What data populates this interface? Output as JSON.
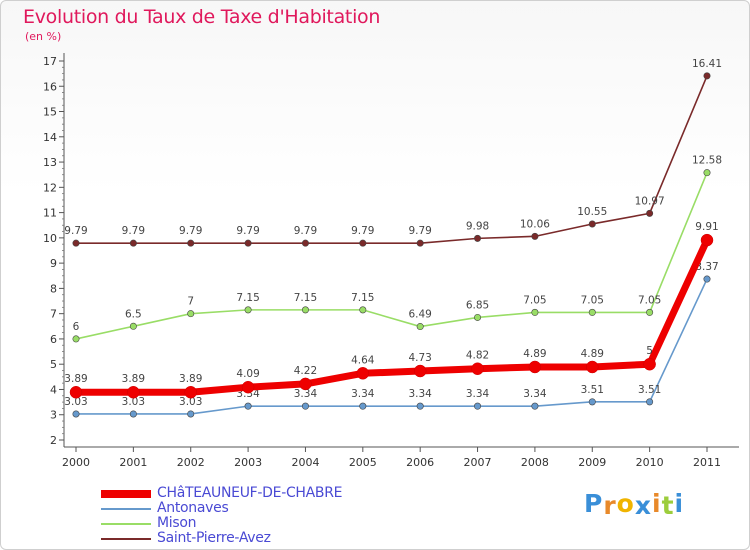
{
  "header": {
    "title": "Evolution du Taux de Taxe d'Habitation",
    "subtitle": "(en %)"
  },
  "chart_data": {
    "type": "line",
    "title": "Evolution du Taux de Taxe d'Habitation",
    "subtitle": "(en %)",
    "categories": [
      "2000",
      "2001",
      "2002",
      "2003",
      "2004",
      "2005",
      "2006",
      "2007",
      "2008",
      "2009",
      "2010",
      "2011"
    ],
    "ylim": [
      2,
      17
    ],
    "yticks": [
      "2",
      "3",
      "4",
      "5",
      "6",
      "7",
      "8",
      "9",
      "10",
      "11",
      "12",
      "13",
      "14",
      "15",
      "16",
      "17"
    ],
    "grid": false,
    "series": [
      {
        "name": "Saint-Pierre-Avez",
        "color": "#7a2a2a",
        "values": [
          9.79,
          9.79,
          9.79,
          9.79,
          9.79,
          9.79,
          9.79,
          9.98,
          10.06,
          10.55,
          10.97,
          16.41
        ],
        "labels": [
          "9.79",
          "9.79",
          "9.79",
          "9.79",
          "9.79",
          "9.79",
          "9.79",
          "9.98",
          "10.06",
          "10.55",
          "10.97",
          "16.41"
        ]
      },
      {
        "name": "Mison",
        "color": "#99dd66",
        "values": [
          6,
          6.5,
          7,
          7.15,
          7.15,
          7.15,
          6.49,
          6.85,
          7.05,
          7.05,
          7.05,
          12.58
        ],
        "labels": [
          "6",
          "6.5",
          "7",
          "7.15",
          "7.15",
          "7.15",
          "6.49",
          "6.85",
          "7.05",
          "7.05",
          "7.05",
          "12.58"
        ]
      },
      {
        "name": "Antonaves",
        "color": "#6699cc",
        "values": [
          3.03,
          3.03,
          3.03,
          3.34,
          3.34,
          3.34,
          3.34,
          3.34,
          3.34,
          3.51,
          3.51,
          8.37
        ],
        "labels": [
          "3.03",
          "3.03",
          "3.03",
          "3.34",
          "3.34",
          "3.34",
          "3.34",
          "3.34",
          "3.34",
          "3.51",
          "3.51",
          "8.37"
        ]
      },
      {
        "name": "CHâTEAUNEUF-DE-CHABRE",
        "color": "#ee0000",
        "values": [
          3.89,
          3.89,
          3.89,
          4.09,
          4.22,
          4.64,
          4.73,
          4.82,
          4.89,
          4.89,
          5,
          9.91
        ],
        "labels": [
          "3.89",
          "3.89",
          "3.89",
          "4.09",
          "4.22",
          "4.64",
          "4.73",
          "4.82",
          "4.89",
          "4.89",
          "5",
          "9.91"
        ]
      }
    ],
    "legend_order": [
      "CHâTEAUNEUF-DE-CHABRE",
      "Antonaves",
      "Mison",
      "Saint-Pierre-Avez"
    ],
    "legend_position": "bottom-left"
  },
  "logo": {
    "letters": [
      "P",
      "r",
      "o",
      "x",
      "i",
      "t",
      "i"
    ],
    "colors": [
      "#3a8fd8",
      "#e8892a",
      "#f0b400",
      "#3a8fd8",
      "#e8892a",
      "#9ccd3c",
      "#3a8fd8"
    ]
  }
}
